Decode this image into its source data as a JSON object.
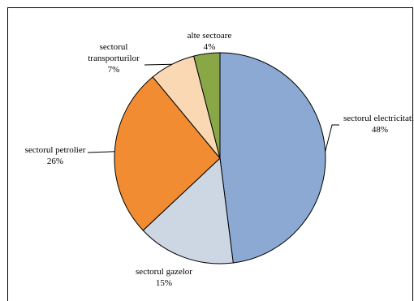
{
  "chart_data": {
    "type": "pie",
    "title": "",
    "start_angle_deg": 0,
    "direction": "clockwise",
    "slices": [
      {
        "label": "sectorul electricitatii",
        "display_label": "sectorul electricitatii",
        "percent_text": "48%",
        "value": 48,
        "color": "#8BA9D3"
      },
      {
        "label": "sectorul gazelor",
        "display_label": "sectorul gazelor",
        "percent_text": "15%",
        "value": 15,
        "color": "#CDD6E3"
      },
      {
        "label": "sectorul petrolier",
        "display_label": "sectorul petrolier",
        "percent_text": "26%",
        "value": 26,
        "color": "#F18C32"
      },
      {
        "label": "sectorul transporturilor",
        "display_label": "sectorul transporturilor",
        "percent_text": "7%",
        "value": 7,
        "color": "#F9D8B3"
      },
      {
        "label": "alte sectoare",
        "display_label": "alte sectoare",
        "percent_text": "4%",
        "value": 4,
        "color": "#8AA747"
      }
    ],
    "labels": {
      "electricity_line1": "sectorul electricitatii",
      "gas_line1": "sectorul gazelor",
      "petrol_line1": "sectorul petrolier",
      "transport_line1": "sectorul",
      "transport_line2": "transporturilor",
      "other_line1": "alte sectoare"
    }
  }
}
